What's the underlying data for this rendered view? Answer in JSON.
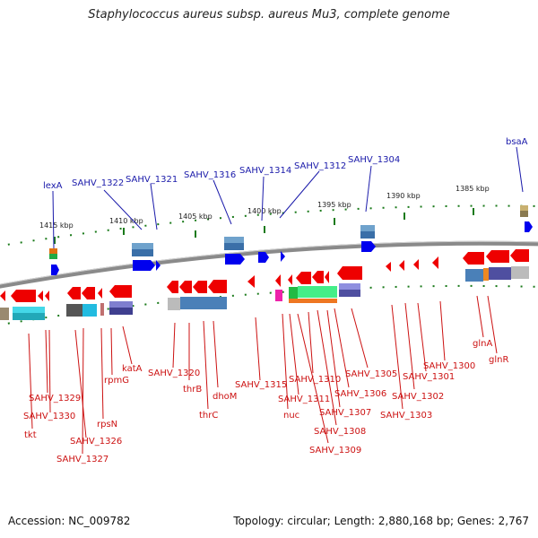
{
  "title": "Staphylococcus aureus subsp. aureus Mu3, complete genome",
  "accession": "Accession: NC_009782",
  "summary": "Topology: circular; Length: 2,880,168 bp; Genes: 2,767",
  "ruler_ticks": [
    "1415 kbp",
    "1410 kbp",
    "1405 kbp",
    "1400 kbp",
    "1395 kbp",
    "1390 kbp",
    "1385 kbp"
  ],
  "top_labels": [
    "lexA",
    "SAHV_1322",
    "SAHV_1321",
    "SAHV_1316",
    "SAHV_1314",
    "SAHV_1312",
    "SAHV_1304",
    "bsaA"
  ],
  "bottom_labels": [
    "SAHV_1329",
    "SAHV_1330",
    "tkt",
    "SAHV_1326",
    "SAHV_1327",
    "rpsN",
    "rpmG",
    "katA",
    "SAHV_1320",
    "thrB",
    "thrC",
    "dhoM",
    "SAHV_1315",
    "nuc",
    "SAHV_1311",
    "SAHV_1310",
    "SAHV_1309",
    "SAHV_1308",
    "SAHV_1307",
    "SAHV_1306",
    "SAHV_1305",
    "SAHV_1303",
    "SAHV_1302",
    "SAHV_1301",
    "SAHV_1300",
    "glnA",
    "glnR"
  ],
  "colors": {
    "forward_gene": "#0000ee",
    "reverse_gene": "#ee0000",
    "backbone": "#888888",
    "tick": "#1a7a1a",
    "label_top": "#1a1aaa",
    "label_bottom": "#cc1111"
  }
}
